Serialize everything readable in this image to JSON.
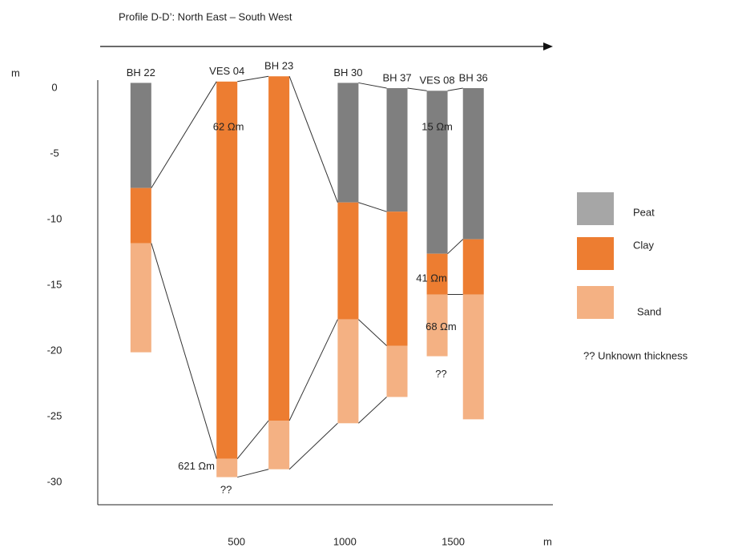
{
  "chart_data": {
    "type": "borehole-profile",
    "title": "Profile D-D’: North East – South West",
    "y_label": "m",
    "x_label": "m",
    "xlim": [
      -140,
      1960
    ],
    "xticks": [
      500,
      1000,
      1500
    ],
    "ylim": [
      1,
      -31.7
    ],
    "yticks": [
      0,
      -5,
      -10,
      -15,
      -20,
      -25,
      -30
    ],
    "categories": [
      "BH 22",
      "VES 04",
      "BH 23",
      "BH 30",
      "BH 37",
      "VES 08",
      "BH 36"
    ],
    "x": [
      59,
      456,
      696,
      1015,
      1241,
      1426,
      1593
    ],
    "series": [
      {
        "name": "Peat",
        "color": "#7f7f7f",
        "legend_color": "#a6a6a6",
        "values": [
          [
            0.4,
            -7.6
          ],
          null,
          null,
          [
            0.4,
            -8.7
          ],
          [
            0,
            -9.4
          ],
          [
            -0.2,
            -12.6
          ],
          [
            0,
            -11.5
          ]
        ]
      },
      {
        "name": "Clay",
        "color": "#ed7d31",
        "legend_color": "#ed7d31",
        "values": [
          [
            -7.6,
            -11.8
          ],
          [
            0.5,
            -28.2
          ],
          [
            0.9,
            -25.3
          ],
          [
            -8.7,
            -17.6
          ],
          [
            -9.4,
            -19.6
          ],
          [
            -12.6,
            -15.7
          ],
          [
            -11.5,
            -15.7
          ]
        ]
      },
      {
        "name": "Sand",
        "color": "#f4b183",
        "legend_color": "#f4b183",
        "values": [
          [
            -11.8,
            -20.1
          ],
          [
            -28.2,
            -29.6
          ],
          [
            -25.3,
            -29.0
          ],
          [
            -17.6,
            -25.5
          ],
          [
            -19.6,
            -23.5
          ],
          [
            -15.7,
            -20.4
          ],
          [
            -15.7,
            -25.2
          ]
        ]
      }
    ],
    "annotations": [
      {
        "text": "62 Ωm",
        "x": 463,
        "y": -3.0
      },
      {
        "text": "621 Ωm",
        "x": 315,
        "y": -28.8
      },
      {
        "text": "??",
        "x": 452,
        "y": -30.6
      },
      {
        "text": "15 Ωm",
        "x": 1426,
        "y": -3.0
      },
      {
        "text": "41 Ωm",
        "x": 1400,
        "y": -14.5
      },
      {
        "text": "68 Ωm",
        "x": 1444,
        "y": -18.2
      },
      {
        "text": "??",
        "x": 1444,
        "y": -21.8
      }
    ],
    "note": "?? Unknown thickness"
  }
}
